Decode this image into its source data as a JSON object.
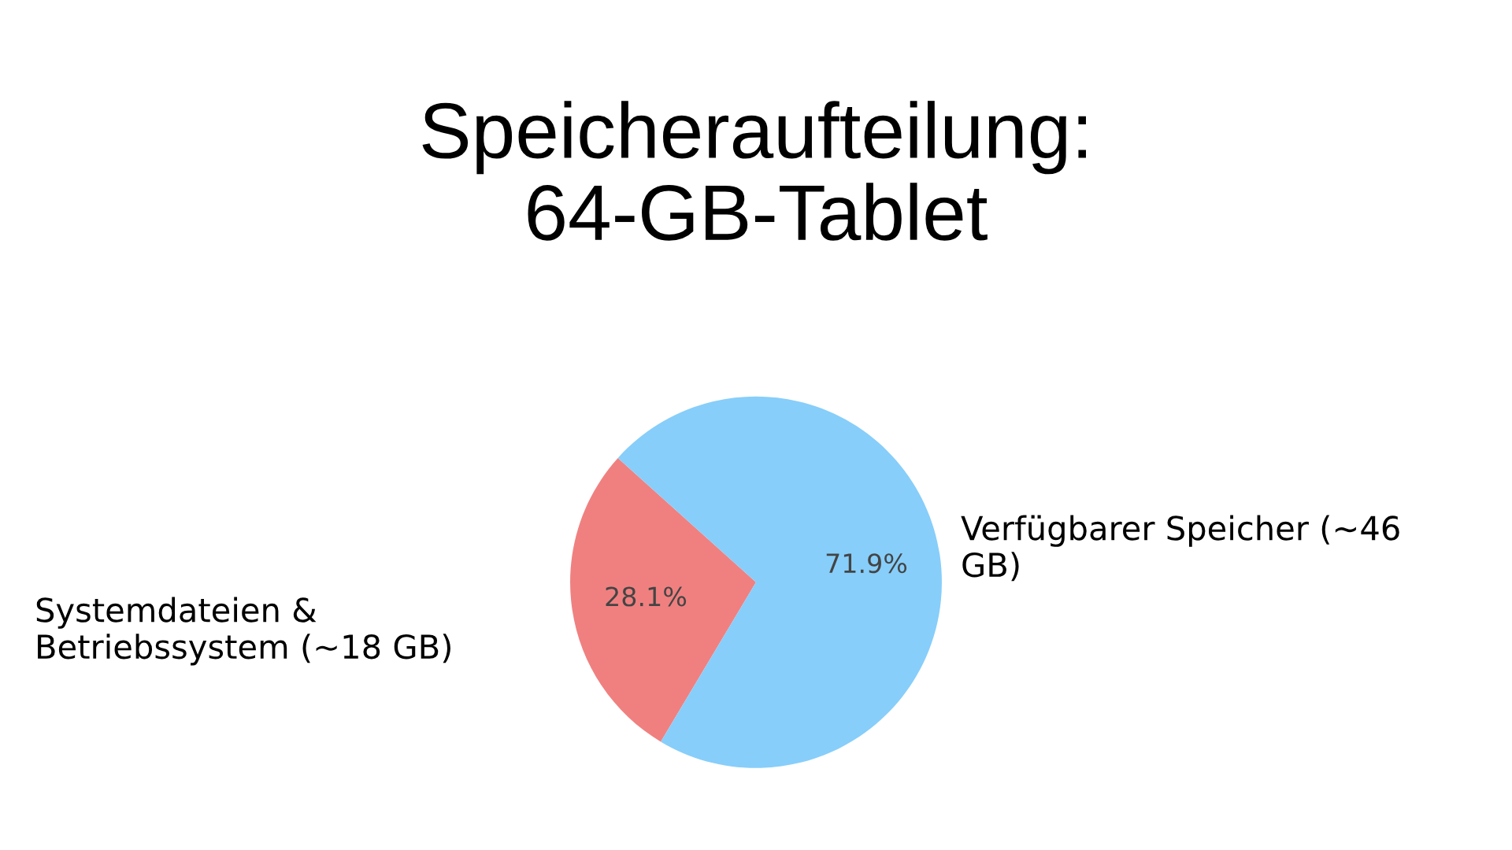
{
  "chart_data": {
    "type": "pie",
    "title": "Speicheraufteilung:\n64-GB-Tablet",
    "categories": [
      "Systemdateien &\nBetriebssystem (~18 GB)",
      "Verfügbarer Speicher (~46\nGB)"
    ],
    "values": [
      28.1,
      71.9
    ],
    "colors": [
      "#f08080",
      "#87cefa"
    ],
    "value_labels": [
      "28.1%",
      "71.9%"
    ]
  }
}
